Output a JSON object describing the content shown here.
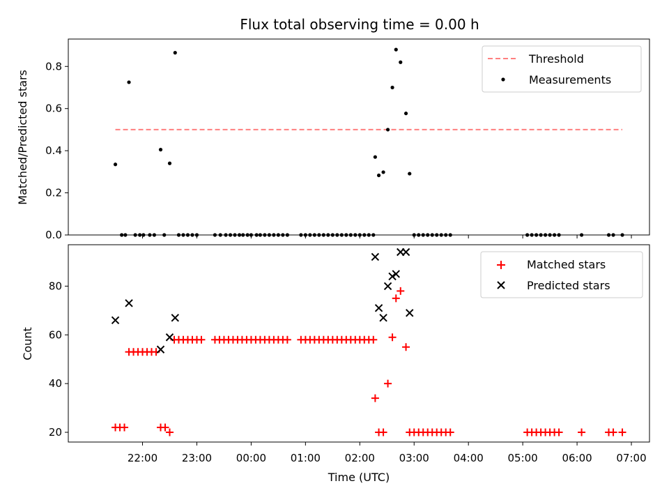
{
  "chart_data": [
    {
      "type": "scatter",
      "title": "Flux total observing time = 0.00 h",
      "xlabel": "",
      "ylabel": "Matched/Predicted stars",
      "ylim": [
        0,
        0.93
      ],
      "yticks": [
        "0.0",
        "0.2",
        "0.4",
        "0.6",
        "0.8"
      ],
      "yticks_values": [
        0.0,
        0.2,
        0.4,
        0.6,
        0.8
      ],
      "grid": false,
      "legend_position": "top-right",
      "threshold": {
        "name": "Threshold",
        "value": 0.5,
        "x_start": "21:30",
        "x_end": "06:50",
        "color": "#ff7f7f"
      },
      "series": [
        {
          "name": "Measurements",
          "color": "#000000",
          "points": [
            [
              "21:30",
              0.335
            ],
            [
              "21:37",
              0.0
            ],
            [
              "21:41",
              0.0
            ],
            [
              "21:45",
              0.725
            ],
            [
              "21:52",
              0.0
            ],
            [
              "21:57",
              0.0
            ],
            [
              "22:01",
              0.0
            ],
            [
              "22:08",
              0.0
            ],
            [
              "22:13",
              0.0
            ],
            [
              "22:20",
              0.405
            ],
            [
              "22:24",
              0.0
            ],
            [
              "22:30",
              0.34
            ],
            [
              "22:36",
              0.865
            ],
            [
              "22:40",
              0.0
            ],
            [
              "22:45",
              0.0
            ],
            [
              "22:50",
              0.0
            ],
            [
              "22:55",
              0.0
            ],
            [
              "23:00",
              0.0
            ],
            [
              "23:20",
              0.0
            ],
            [
              "23:26",
              0.0
            ],
            [
              "23:32",
              0.0
            ],
            [
              "23:37",
              0.0
            ],
            [
              "23:42",
              0.0
            ],
            [
              "23:47",
              0.0
            ],
            [
              "23:51",
              0.0
            ],
            [
              "23:56",
              0.0
            ],
            [
              "00:00",
              0.0
            ],
            [
              "00:06",
              0.0
            ],
            [
              "00:10",
              0.0
            ],
            [
              "00:15",
              0.0
            ],
            [
              "00:20",
              0.0
            ],
            [
              "00:25",
              0.0
            ],
            [
              "00:30",
              0.0
            ],
            [
              "00:35",
              0.0
            ],
            [
              "00:40",
              0.0
            ],
            [
              "00:55",
              0.0
            ],
            [
              "01:00",
              0.0
            ],
            [
              "01:05",
              0.0
            ],
            [
              "01:10",
              0.0
            ],
            [
              "01:15",
              0.0
            ],
            [
              "01:20",
              0.0
            ],
            [
              "01:25",
              0.0
            ],
            [
              "01:30",
              0.0
            ],
            [
              "01:35",
              0.0
            ],
            [
              "01:40",
              0.0
            ],
            [
              "01:45",
              0.0
            ],
            [
              "01:50",
              0.0
            ],
            [
              "01:55",
              0.0
            ],
            [
              "02:00",
              0.0
            ],
            [
              "02:05",
              0.0
            ],
            [
              "02:10",
              0.0
            ],
            [
              "02:15",
              0.0
            ],
            [
              "02:17",
              0.37
            ],
            [
              "02:21",
              0.283
            ],
            [
              "02:26",
              0.298
            ],
            [
              "02:31",
              0.5
            ],
            [
              "02:36",
              0.7
            ],
            [
              "02:40",
              0.88
            ],
            [
              "02:45",
              0.82
            ],
            [
              "02:51",
              0.577
            ],
            [
              "02:55",
              0.291
            ],
            [
              "03:00",
              0.0
            ],
            [
              "03:05",
              0.0
            ],
            [
              "03:10",
              0.0
            ],
            [
              "03:15",
              0.0
            ],
            [
              "03:20",
              0.0
            ],
            [
              "03:25",
              0.0
            ],
            [
              "03:30",
              0.0
            ],
            [
              "03:35",
              0.0
            ],
            [
              "03:40",
              0.0
            ],
            [
              "05:05",
              0.0
            ],
            [
              "05:10",
              0.0
            ],
            [
              "05:15",
              0.0
            ],
            [
              "05:20",
              0.0
            ],
            [
              "05:25",
              0.0
            ],
            [
              "05:30",
              0.0
            ],
            [
              "05:35",
              0.0
            ],
            [
              "05:40",
              0.0
            ],
            [
              "06:05",
              0.0
            ],
            [
              "06:35",
              0.0
            ],
            [
              "06:40",
              0.0
            ],
            [
              "06:50",
              0.0
            ]
          ]
        }
      ]
    },
    {
      "type": "scatter",
      "title": "",
      "xlabel": "Time (UTC)",
      "ylabel": "Count",
      "ylim": [
        16,
        97
      ],
      "yticks": [
        "20",
        "40",
        "60",
        "80"
      ],
      "yticks_values": [
        20,
        40,
        60,
        80
      ],
      "xticks": [
        "22:00",
        "23:00",
        "00:00",
        "01:00",
        "02:00",
        "03:00",
        "04:00",
        "05:00",
        "06:00",
        "07:00"
      ],
      "xticks_values": [
        "22:00",
        "23:00",
        "00:00",
        "01:00",
        "02:00",
        "03:00",
        "04:00",
        "05:00",
        "06:00",
        "07:00"
      ],
      "grid": false,
      "legend_position": "top-right",
      "series": [
        {
          "name": "Matched stars",
          "color": "#ff0000",
          "marker": "plus",
          "points": [
            [
              "21:30",
              22
            ],
            [
              "21:35",
              22
            ],
            [
              "21:40",
              22
            ],
            [
              "21:45",
              53
            ],
            [
              "21:50",
              53
            ],
            [
              "21:55",
              53
            ],
            [
              "22:00",
              53
            ],
            [
              "22:05",
              53
            ],
            [
              "22:10",
              53
            ],
            [
              "22:15",
              53
            ],
            [
              "22:20",
              22
            ],
            [
              "22:25",
              22
            ],
            [
              "22:30",
              20
            ],
            [
              "22:35",
              58
            ],
            [
              "22:40",
              58
            ],
            [
              "22:45",
              58
            ],
            [
              "22:50",
              58
            ],
            [
              "22:55",
              58
            ],
            [
              "23:00",
              58
            ],
            [
              "23:05",
              58
            ],
            [
              "23:20",
              58
            ],
            [
              "23:25",
              58
            ],
            [
              "23:30",
              58
            ],
            [
              "23:35",
              58
            ],
            [
              "23:40",
              58
            ],
            [
              "23:45",
              58
            ],
            [
              "23:50",
              58
            ],
            [
              "23:55",
              58
            ],
            [
              "00:00",
              58
            ],
            [
              "00:05",
              58
            ],
            [
              "00:10",
              58
            ],
            [
              "00:15",
              58
            ],
            [
              "00:20",
              58
            ],
            [
              "00:25",
              58
            ],
            [
              "00:30",
              58
            ],
            [
              "00:35",
              58
            ],
            [
              "00:40",
              58
            ],
            [
              "00:55",
              58
            ],
            [
              "01:00",
              58
            ],
            [
              "01:05",
              58
            ],
            [
              "01:10",
              58
            ],
            [
              "01:15",
              58
            ],
            [
              "01:20",
              58
            ],
            [
              "01:25",
              58
            ],
            [
              "01:30",
              58
            ],
            [
              "01:35",
              58
            ],
            [
              "01:40",
              58
            ],
            [
              "01:45",
              58
            ],
            [
              "01:50",
              58
            ],
            [
              "01:55",
              58
            ],
            [
              "02:00",
              58
            ],
            [
              "02:05",
              58
            ],
            [
              "02:10",
              58
            ],
            [
              "02:15",
              58
            ],
            [
              "02:17",
              34
            ],
            [
              "02:21",
              20
            ],
            [
              "02:26",
              20
            ],
            [
              "02:31",
              40
            ],
            [
              "02:36",
              59
            ],
            [
              "02:40",
              75
            ],
            [
              "02:45",
              78
            ],
            [
              "02:51",
              55
            ],
            [
              "02:55",
              20
            ],
            [
              "03:00",
              20
            ],
            [
              "03:05",
              20
            ],
            [
              "03:10",
              20
            ],
            [
              "03:15",
              20
            ],
            [
              "03:20",
              20
            ],
            [
              "03:25",
              20
            ],
            [
              "03:30",
              20
            ],
            [
              "03:35",
              20
            ],
            [
              "03:40",
              20
            ],
            [
              "05:05",
              20
            ],
            [
              "05:10",
              20
            ],
            [
              "05:15",
              20
            ],
            [
              "05:20",
              20
            ],
            [
              "05:25",
              20
            ],
            [
              "05:30",
              20
            ],
            [
              "05:35",
              20
            ],
            [
              "05:40",
              20
            ],
            [
              "06:05",
              20
            ],
            [
              "06:35",
              20
            ],
            [
              "06:40",
              20
            ],
            [
              "06:50",
              20
            ]
          ]
        },
        {
          "name": "Predicted stars",
          "color": "#000000",
          "marker": "x",
          "points": [
            [
              "21:30",
              66
            ],
            [
              "21:45",
              73
            ],
            [
              "22:20",
              54
            ],
            [
              "22:30",
              59
            ],
            [
              "22:36",
              67
            ],
            [
              "02:17",
              92
            ],
            [
              "02:21",
              71
            ],
            [
              "02:26",
              67
            ],
            [
              "02:31",
              80
            ],
            [
              "02:36",
              84
            ],
            [
              "02:40",
              85
            ],
            [
              "02:45",
              94
            ],
            [
              "02:51",
              94
            ],
            [
              "02:55",
              69
            ]
          ]
        }
      ]
    }
  ]
}
